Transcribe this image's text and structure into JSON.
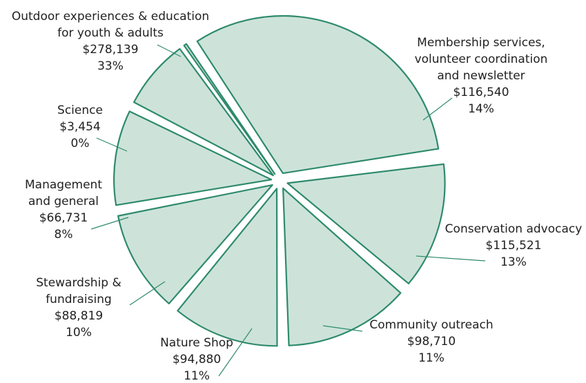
{
  "chart_data": {
    "type": "pie",
    "slice_fill": "#cde3da",
    "slice_stroke": "#2e8a6c",
    "slices": [
      {
        "label_lines": [
          "Outdoor experiences & education",
          "for youth & adults"
        ],
        "amount": "$278,139",
        "percent": "33%",
        "value": 278139
      },
      {
        "label_lines": [
          "Membership services,",
          "volunteer coordination",
          "and newsletter"
        ],
        "amount": "$116,540",
        "percent": "14%",
        "value": 116540
      },
      {
        "label_lines": [
          "Conservation advocacy"
        ],
        "amount": "$115,521",
        "percent": "13%",
        "value": 115521
      },
      {
        "label_lines": [
          "Community outreach"
        ],
        "amount": "$98,710",
        "percent": "11%",
        "value": 98710
      },
      {
        "label_lines": [
          "Nature Shop"
        ],
        "amount": "$94,880",
        "percent": "11%",
        "value": 94880
      },
      {
        "label_lines": [
          "Stewardship &",
          "fundraising"
        ],
        "amount": "$88,819",
        "percent": "10%",
        "value": 88819
      },
      {
        "label_lines": [
          "Management",
          "and general"
        ],
        "amount": "$66,731",
        "percent": "8%",
        "value": 66731
      },
      {
        "label_lines": [
          "Science"
        ],
        "amount": "$3,454",
        "percent": "0%",
        "value": 3454
      }
    ]
  }
}
